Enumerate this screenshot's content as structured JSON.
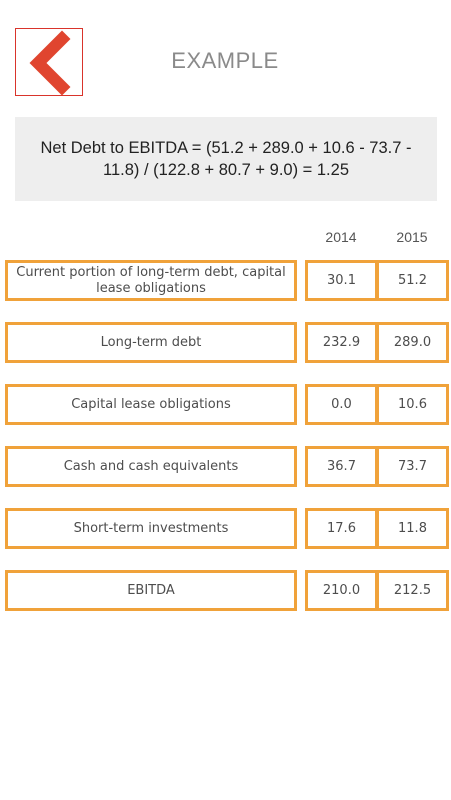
{
  "header": {
    "title": "EXAMPLE",
    "back_icon": "chevron-left-icon",
    "back_color": "#e0452f"
  },
  "formula": "Net Debt to EBITDA = (51.2 + 289.0 + 10.6 - 73.7 - 11.8) / (122.8 + 80.7 + 9.0) = 1.25",
  "columns": [
    "2014",
    "2015"
  ],
  "rows": [
    {
      "label": "Current portion of long-term debt, capital lease obligations",
      "v2014": "30.1",
      "v2015": "51.2"
    },
    {
      "label": "Long-term debt",
      "v2014": "232.9",
      "v2015": "289.0"
    },
    {
      "label": "Capital lease obligations",
      "v2014": "0.0",
      "v2015": "10.6"
    },
    {
      "label": "Cash and cash equivalents",
      "v2014": "36.7",
      "v2015": "73.7"
    },
    {
      "label": "Short-term investments",
      "v2014": "17.6",
      "v2015": "11.8"
    },
    {
      "label": "EBITDA",
      "v2014": "210.0",
      "v2015": "212.5"
    }
  ],
  "colors": {
    "accent_border": "#f0a23a",
    "back_border": "#d9342b",
    "formula_bg": "#eeeeee"
  }
}
